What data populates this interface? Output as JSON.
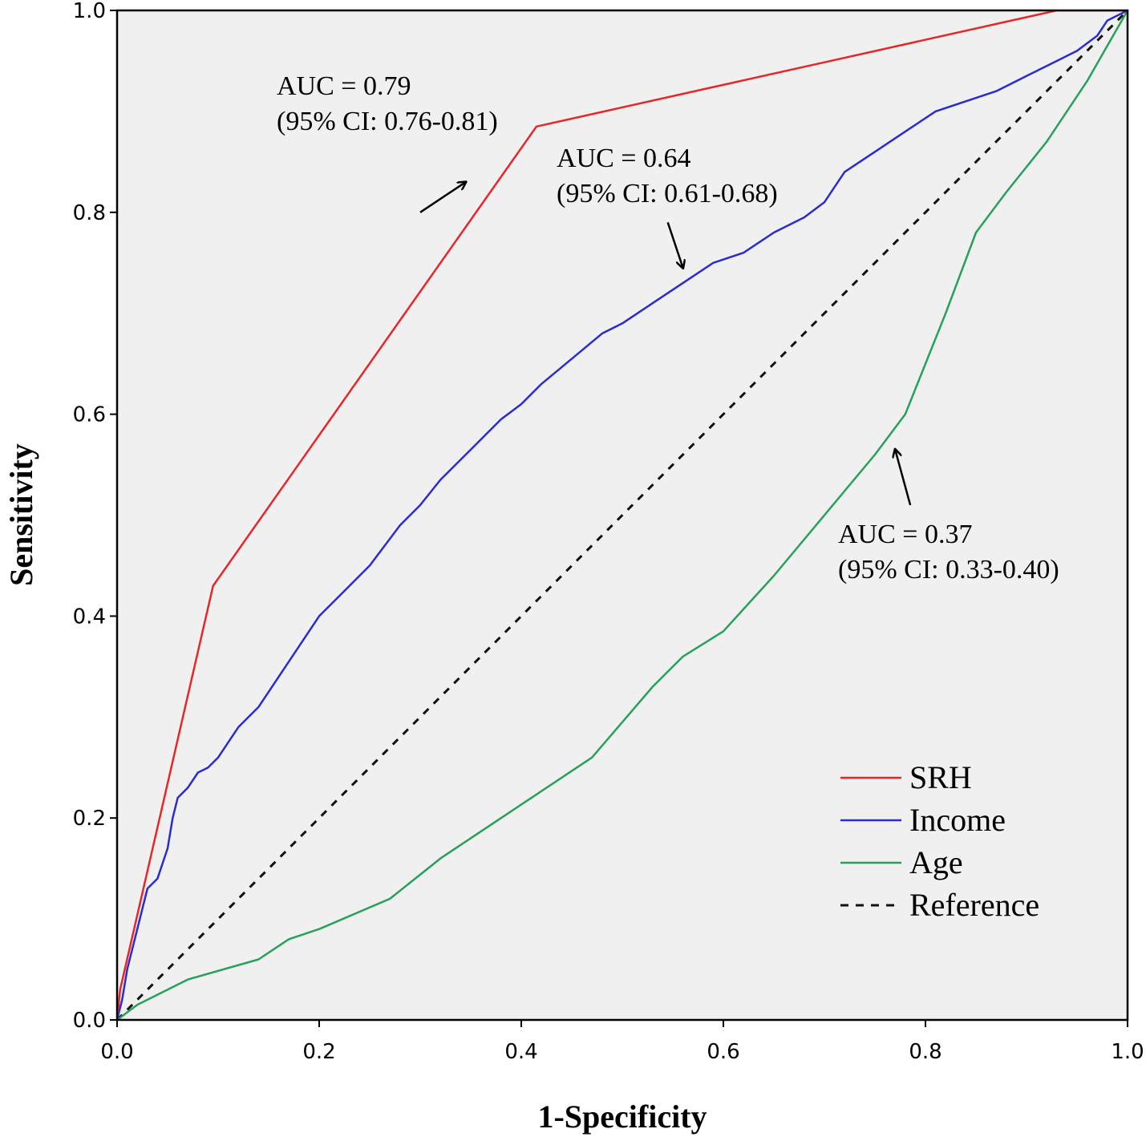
{
  "chart_data": {
    "type": "line",
    "title": "",
    "xlabel": "1-Specificity",
    "ylabel": "Sensitivity",
    "xlim": [
      0,
      1
    ],
    "ylim": [
      0,
      1
    ],
    "xticks": [
      "0.0",
      "0.2",
      "0.4",
      "0.6",
      "0.8",
      "1.0"
    ],
    "yticks": [
      "0.0",
      "0.2",
      "0.4",
      "0.6",
      "0.8",
      "1.0"
    ],
    "grid": false,
    "legend_position": "bottom-right",
    "series": [
      {
        "name": "SRH",
        "color": "#e8262a",
        "dash": false,
        "x": [
          0,
          0.003,
          0.095,
          0.415,
          0.93,
          1.0
        ],
        "y": [
          0,
          0.03,
          0.43,
          0.885,
          1.0,
          1.0
        ]
      },
      {
        "name": "Income",
        "color": "#2b2bd0",
        "dash": false,
        "x": [
          0,
          0.005,
          0.01,
          0.02,
          0.03,
          0.04,
          0.05,
          0.055,
          0.06,
          0.07,
          0.08,
          0.09,
          0.1,
          0.12,
          0.14,
          0.16,
          0.18,
          0.2,
          0.22,
          0.25,
          0.28,
          0.3,
          0.32,
          0.35,
          0.38,
          0.4,
          0.42,
          0.45,
          0.48,
          0.5,
          0.53,
          0.56,
          0.59,
          0.62,
          0.65,
          0.68,
          0.7,
          0.72,
          0.75,
          0.78,
          0.81,
          0.84,
          0.87,
          0.9,
          0.93,
          0.95,
          0.97,
          0.98,
          1.0
        ],
        "y": [
          0,
          0.02,
          0.05,
          0.09,
          0.13,
          0.14,
          0.17,
          0.2,
          0.22,
          0.23,
          0.245,
          0.25,
          0.26,
          0.29,
          0.31,
          0.34,
          0.37,
          0.4,
          0.42,
          0.45,
          0.49,
          0.51,
          0.535,
          0.565,
          0.595,
          0.61,
          0.63,
          0.655,
          0.68,
          0.69,
          0.71,
          0.73,
          0.75,
          0.76,
          0.78,
          0.795,
          0.81,
          0.84,
          0.86,
          0.88,
          0.9,
          0.91,
          0.92,
          0.935,
          0.95,
          0.96,
          0.975,
          0.99,
          1.0
        ]
      },
      {
        "name": "Age",
        "color": "#27a05a",
        "dash": false,
        "x": [
          0,
          0.02,
          0.07,
          0.14,
          0.17,
          0.2,
          0.27,
          0.32,
          0.38,
          0.47,
          0.53,
          0.56,
          0.6,
          0.65,
          0.7,
          0.75,
          0.78,
          0.82,
          0.85,
          0.88,
          0.92,
          0.96,
          1.0
        ],
        "y": [
          0,
          0.015,
          0.04,
          0.06,
          0.08,
          0.09,
          0.12,
          0.16,
          0.2,
          0.26,
          0.33,
          0.36,
          0.385,
          0.44,
          0.5,
          0.56,
          0.6,
          0.7,
          0.78,
          0.82,
          0.87,
          0.93,
          1.0
        ]
      },
      {
        "name": "Reference",
        "color": "#111111",
        "dash": true,
        "x": [
          0,
          1
        ],
        "y": [
          0,
          1
        ]
      }
    ],
    "annotations": [
      {
        "series": "SRH",
        "line1": "AUC = 0.79",
        "line2": "(95% CI: 0.76-0.81)",
        "arrow_from": [
          0.3,
          0.8
        ],
        "arrow_to": [
          0.345,
          0.83
        ]
      },
      {
        "series": "Income",
        "line1": "AUC = 0.64",
        "line2": "(95% CI: 0.61-0.68)",
        "arrow_from": [
          0.545,
          0.79
        ],
        "arrow_to": [
          0.56,
          0.745
        ]
      },
      {
        "series": "Age",
        "line1": "AUC = 0.37",
        "line2": "(95% CI: 0.33-0.40)",
        "arrow_from": [
          0.785,
          0.51
        ],
        "arrow_to": [
          0.77,
          0.565
        ]
      }
    ]
  }
}
